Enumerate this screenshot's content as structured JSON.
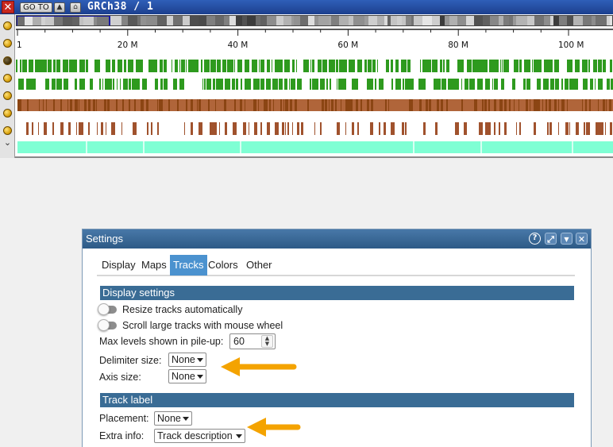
{
  "browser": {
    "close_glyph": "✕",
    "goto_label": "GO TO",
    "assembly_title": "GRCh38 / 1",
    "icons": [
      "close-icon",
      "up-arrow-icon",
      "home-icon",
      "chevron-down-icon"
    ],
    "ruler_ticks": [
      {
        "label": "1",
        "pos_mb": 0
      },
      {
        "label": "20 M",
        "pos_mb": 20
      },
      {
        "label": "40 M",
        "pos_mb": 40
      },
      {
        "label": "60 M",
        "pos_mb": 60
      },
      {
        "label": "80 M",
        "pos_mb": 80
      },
      {
        "label": "100 M",
        "pos_mb": 100
      }
    ],
    "colors": {
      "gene_track": "#2e9a1e",
      "feature_track": "#a0522d",
      "cyan_track": "#7fffd4",
      "title_bar": "#2f5fb8"
    }
  },
  "settings": {
    "title": "Settings",
    "header_icons": [
      "help-icon",
      "maximize-icon",
      "menu-icon",
      "close-icon"
    ],
    "tabs": [
      {
        "label": "Display",
        "active": false
      },
      {
        "label": "Maps",
        "active": false
      },
      {
        "label": "Tracks",
        "active": true
      },
      {
        "label": "Colors",
        "active": false
      },
      {
        "label": "Other",
        "active": false
      }
    ],
    "display_settings": {
      "header": "Display settings",
      "resize_label": "Resize tracks automatically",
      "resize_on": false,
      "scroll_label": "Scroll large tracks with mouse wheel",
      "scroll_on": false,
      "max_levels_label": "Max levels shown in pile-up:",
      "max_levels_value": "60",
      "delimiter_label": "Delimiter size:",
      "delimiter_value": "None",
      "axis_label": "Axis size:",
      "axis_value": "None"
    },
    "track_label": {
      "header": "Track label",
      "placement_label": "Placement:",
      "placement_value": "None",
      "extra_label": "Extra info:",
      "extra_value": "Track description"
    },
    "accent_colors": {
      "active_tab": "#4b92cf",
      "section_header": "#3a6c95",
      "callout_arrow": "#f4a300"
    }
  }
}
